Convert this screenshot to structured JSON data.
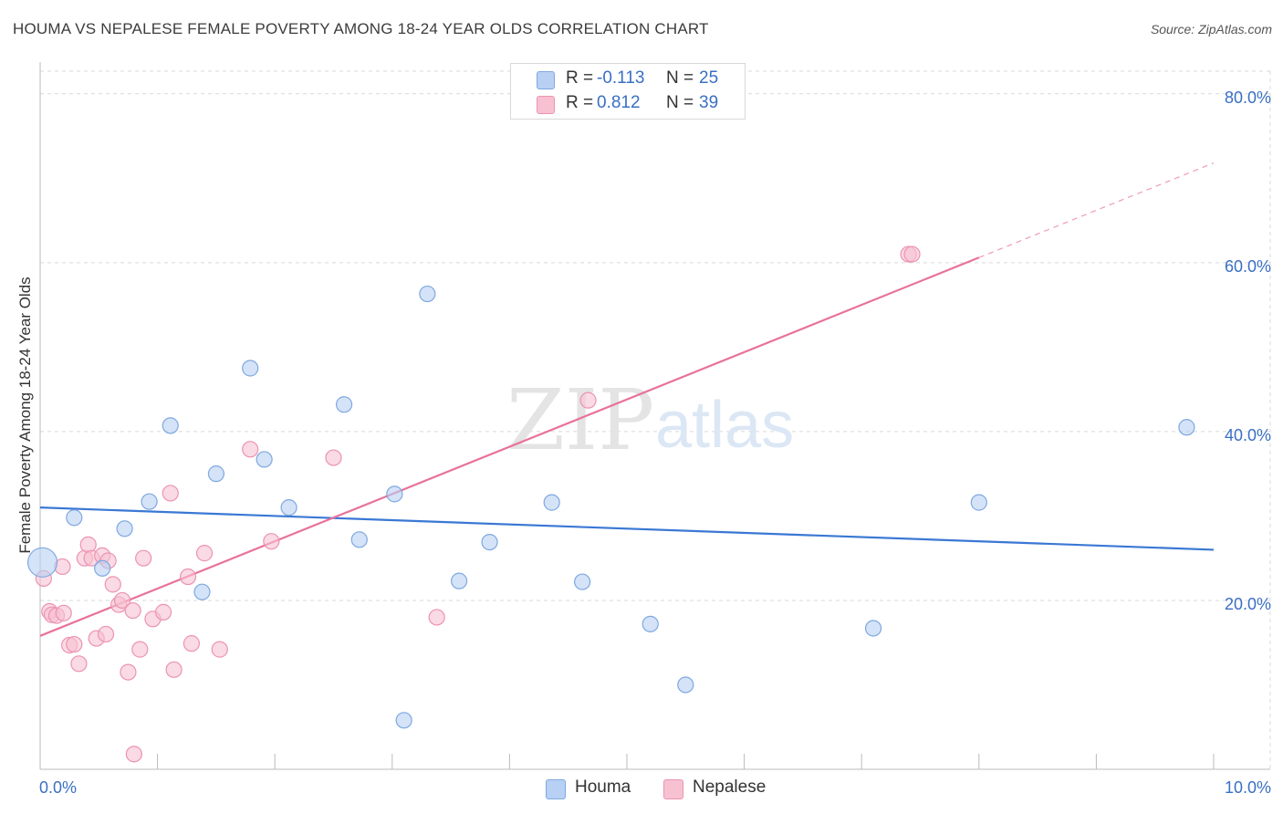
{
  "header": {
    "title": "HOUMA VS NEPALESE FEMALE POVERTY AMONG 18-24 YEAR OLDS CORRELATION CHART",
    "source": "Source: ZipAtlas.com"
  },
  "watermark": {
    "zip": "ZIP",
    "atlas": "atlas"
  },
  "legend": {
    "r_label": "R =",
    "n_label": "N =",
    "houma": {
      "r": "-0.113",
      "n": "25"
    },
    "nepalese": {
      "r": "0.812",
      "n": "39"
    }
  },
  "bottom_legend": {
    "houma": "Houma",
    "nepalese": "Nepalese"
  },
  "colors": {
    "houma_fill": "#b7d0f3",
    "houma_stroke": "#7fa8e0",
    "houma_line": "#3a78d4",
    "nepalese_fill": "#f7c1d2",
    "nepalese_stroke": "#ec93b1",
    "nepalese_line": "#e8729a",
    "tick_label": "#3a6fc4",
    "grid": "#d9d9d9"
  },
  "chart_data": {
    "type": "scatter",
    "title": "HOUMA VS NEPALESE FEMALE POVERTY AMONG 18-24 YEAR OLDS CORRELATION CHART",
    "xlabel": "",
    "ylabel": "Female Poverty Among 18-24 Year Olds",
    "xlim": [
      0,
      10
    ],
    "ylim": [
      0,
      83
    ],
    "x_tick_labels": {
      "min": "0.0%",
      "max": "10.0%"
    },
    "y_ticks": [
      20,
      40,
      60,
      80
    ],
    "y_tick_labels": [
      "20.0%",
      "40.0%",
      "60.0%",
      "80.0%"
    ],
    "grid": true,
    "legend_position": "top-center",
    "series": [
      {
        "name": "Houma",
        "r": -0.113,
        "n": 25,
        "trend": {
          "x0": 0,
          "y0": 31.0,
          "x1": 10,
          "y1": 26.0
        },
        "points": [
          {
            "x": 0.02,
            "y": 24.5,
            "big": true
          },
          {
            "x": 0.29,
            "y": 29.8
          },
          {
            "x": 0.53,
            "y": 23.8
          },
          {
            "x": 0.72,
            "y": 28.5
          },
          {
            "x": 0.93,
            "y": 31.7
          },
          {
            "x": 1.11,
            "y": 40.7
          },
          {
            "x": 1.38,
            "y": 21.0
          },
          {
            "x": 1.5,
            "y": 35.0
          },
          {
            "x": 1.79,
            "y": 47.5
          },
          {
            "x": 1.91,
            "y": 36.7
          },
          {
            "x": 2.12,
            "y": 31.0
          },
          {
            "x": 2.59,
            "y": 43.2
          },
          {
            "x": 2.72,
            "y": 27.2
          },
          {
            "x": 3.02,
            "y": 32.6
          },
          {
            "x": 3.1,
            "y": 5.8
          },
          {
            "x": 3.3,
            "y": 56.3
          },
          {
            "x": 3.57,
            "y": 22.3
          },
          {
            "x": 3.83,
            "y": 26.9
          },
          {
            "x": 4.36,
            "y": 31.6
          },
          {
            "x": 4.62,
            "y": 22.2
          },
          {
            "x": 5.2,
            "y": 17.2
          },
          {
            "x": 5.5,
            "y": 10.0
          },
          {
            "x": 7.1,
            "y": 16.7
          },
          {
            "x": 8.0,
            "y": 31.6
          },
          {
            "x": 9.77,
            "y": 40.5
          }
        ]
      },
      {
        "name": "Nepalese",
        "r": 0.812,
        "n": 39,
        "trend": {
          "x0": 0,
          "y0": 15.8,
          "x1": 8.0,
          "y1": 60.6,
          "dash_x1": 10.0,
          "dash_y1": 71.8
        },
        "points": [
          {
            "x": 0.03,
            "y": 22.6
          },
          {
            "x": 0.08,
            "y": 18.7
          },
          {
            "x": 0.1,
            "y": 18.3
          },
          {
            "x": 0.14,
            "y": 18.2
          },
          {
            "x": 0.19,
            "y": 24.0
          },
          {
            "x": 0.2,
            "y": 18.5
          },
          {
            "x": 0.25,
            "y": 14.7
          },
          {
            "x": 0.29,
            "y": 14.8
          },
          {
            "x": 0.33,
            "y": 12.5
          },
          {
            "x": 0.38,
            "y": 25.0
          },
          {
            "x": 0.41,
            "y": 26.6
          },
          {
            "x": 0.44,
            "y": 25.0
          },
          {
            "x": 0.48,
            "y": 15.5
          },
          {
            "x": 0.53,
            "y": 25.3
          },
          {
            "x": 0.56,
            "y": 16.0
          },
          {
            "x": 0.58,
            "y": 24.7
          },
          {
            "x": 0.62,
            "y": 21.9
          },
          {
            "x": 0.67,
            "y": 19.5
          },
          {
            "x": 0.7,
            "y": 20.0
          },
          {
            "x": 0.75,
            "y": 11.5
          },
          {
            "x": 0.79,
            "y": 18.8
          },
          {
            "x": 0.8,
            "y": 1.8
          },
          {
            "x": 0.85,
            "y": 14.2
          },
          {
            "x": 0.88,
            "y": 25.0
          },
          {
            "x": 0.96,
            "y": 17.8
          },
          {
            "x": 1.05,
            "y": 18.6
          },
          {
            "x": 1.11,
            "y": 32.7
          },
          {
            "x": 1.14,
            "y": 11.8
          },
          {
            "x": 1.26,
            "y": 22.8
          },
          {
            "x": 1.29,
            "y": 14.9
          },
          {
            "x": 1.4,
            "y": 25.6
          },
          {
            "x": 1.53,
            "y": 14.2
          },
          {
            "x": 1.79,
            "y": 37.9
          },
          {
            "x": 1.97,
            "y": 27.0
          },
          {
            "x": 2.5,
            "y": 36.9
          },
          {
            "x": 3.38,
            "y": 18.0
          },
          {
            "x": 4.67,
            "y": 43.7
          },
          {
            "x": 7.4,
            "y": 61.0
          },
          {
            "x": 7.43,
            "y": 61.0
          }
        ]
      }
    ]
  }
}
